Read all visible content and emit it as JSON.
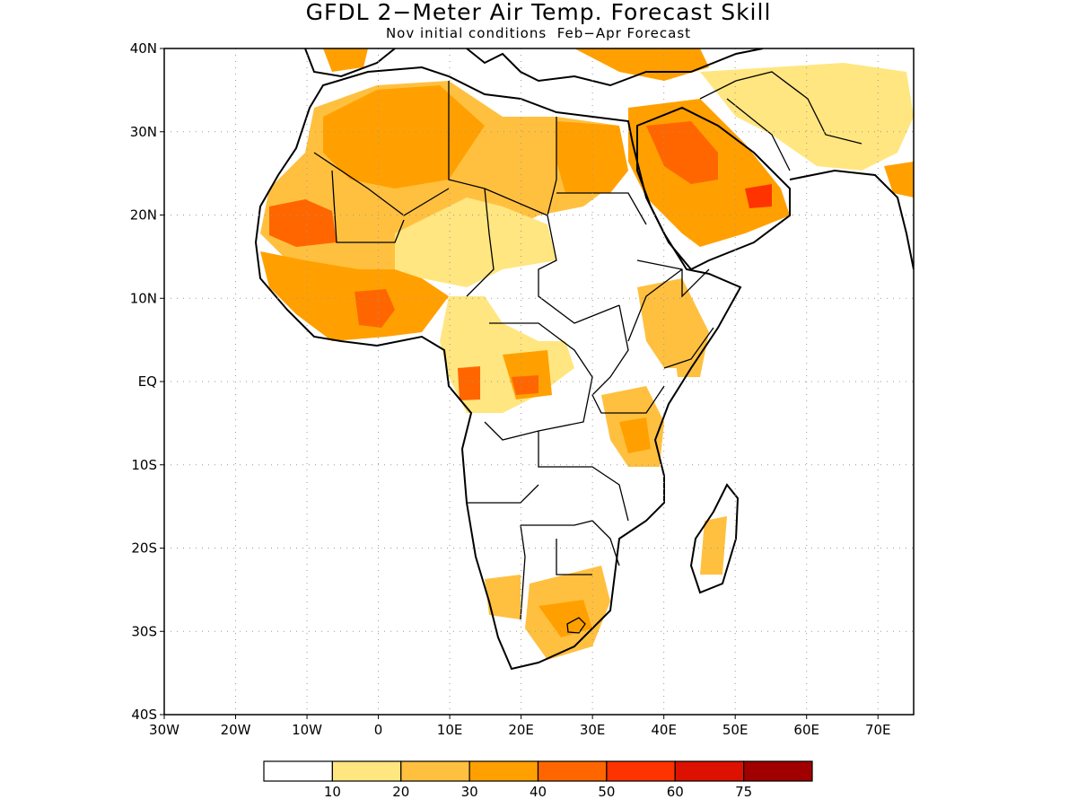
{
  "title": "GFDL 2−Meter Air Temp. Forecast Skill",
  "subtitle": "Nov initial conditions  Feb−Apr Forecast",
  "map": {
    "lon_range": [
      -30,
      75
    ],
    "lat_range": [
      -40,
      40
    ],
    "lat_labels": [
      "40N",
      "30N",
      "20N",
      "10N",
      "EQ",
      "10S",
      "20S",
      "30S",
      "40S"
    ],
    "lon_labels": [
      "30W",
      "20W",
      "10W",
      "0",
      "10E",
      "20E",
      "30E",
      "40E",
      "50E",
      "60E",
      "70E"
    ],
    "grid": "dotted"
  },
  "colorbar": {
    "colors": [
      "#ffffff",
      "#ffe680",
      "#ffc040",
      "#ffa000",
      "#ff6600",
      "#ff3300",
      "#dd1100",
      "#a00000"
    ],
    "labels": [
      "10",
      "20",
      "30",
      "40",
      "50",
      "60",
      "75"
    ]
  }
}
